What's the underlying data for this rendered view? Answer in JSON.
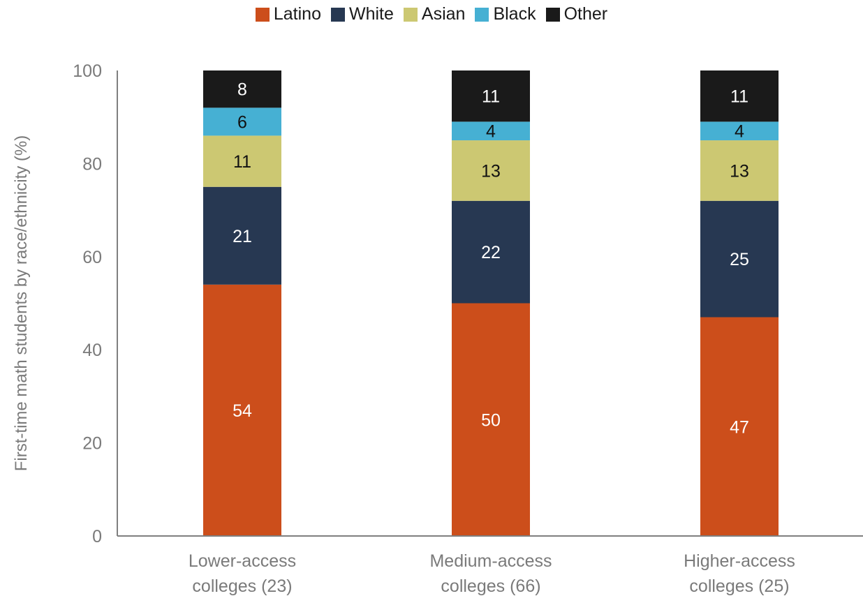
{
  "chart_data": {
    "type": "bar",
    "stacked": true,
    "categories": [
      "Lower-access colleges (23)",
      "Medium-access colleges (66)",
      "Higher-access colleges (25)"
    ],
    "category_lines": [
      [
        "Lower-access",
        "colleges (23)"
      ],
      [
        "Medium-access",
        "colleges (66)"
      ],
      [
        "Higher-access",
        "colleges (25)"
      ]
    ],
    "series": [
      {
        "name": "Latino",
        "values": [
          54,
          50,
          47
        ],
        "color": "#CC4E1B",
        "label_color": "#ffffff"
      },
      {
        "name": "White",
        "values": [
          21,
          22,
          25
        ],
        "color": "#273852",
        "label_color": "#ffffff"
      },
      {
        "name": "Asian",
        "values": [
          11,
          13,
          13
        ],
        "color": "#CCC872",
        "label_color": "#111111"
      },
      {
        "name": "Black",
        "values": [
          6,
          4,
          4
        ],
        "color": "#46B0D3",
        "label_color": "#111111"
      },
      {
        "name": "Other",
        "values": [
          8,
          11,
          11
        ],
        "color": "#1A1A1A",
        "label_color": "#ffffff"
      }
    ],
    "title": "",
    "xlabel": "",
    "ylabel": "First-time math students by race/ethnicity (%)",
    "ylim": [
      0,
      100
    ],
    "yticks": [
      0,
      20,
      40,
      60,
      80,
      100
    ],
    "grid": false,
    "legend_position": "top-center"
  }
}
